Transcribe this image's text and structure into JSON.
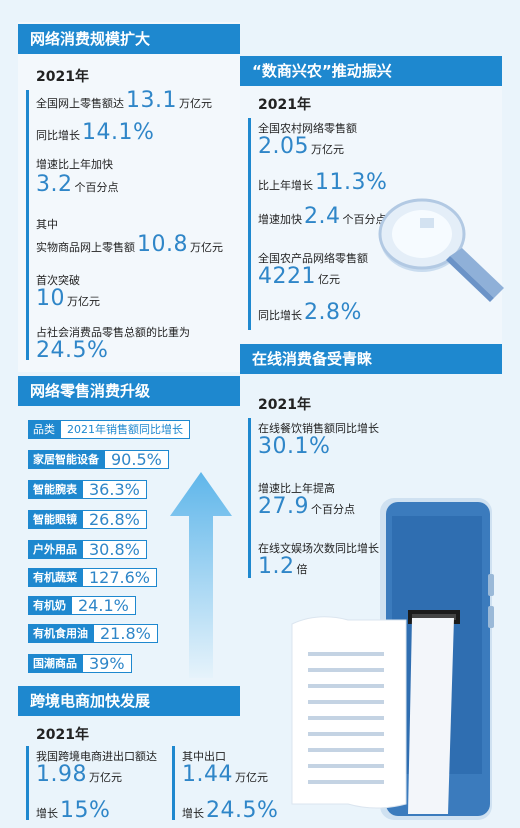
{
  "s1": {
    "title": "网络消费规模扩大",
    "year": "2021年",
    "r1": {
      "label": "全国网上零售额达",
      "value": "13.1",
      "unit": "万亿元"
    },
    "r2": {
      "label": "同比增长",
      "value": "14.1%"
    },
    "r3": {
      "label": "增速比上年加快",
      "value": "3.2",
      "unit": "个百分点"
    },
    "r4": {
      "label": "其中"
    },
    "r5": {
      "label": "实物商品网上零售额",
      "value": "10.8",
      "unit": "万亿元"
    },
    "r6": {
      "label": "首次突破",
      "value": "10",
      "unit": "万亿元"
    },
    "r7": {
      "label": "占社会消费品零售总额的比重为",
      "value": "24.5%"
    }
  },
  "s2": {
    "title": "“数商兴农”推动振兴",
    "year": "2021年",
    "r1": {
      "label": "全国农村网络零售额",
      "value": "2.05",
      "unit": "万亿元"
    },
    "r2": {
      "label": "比上年增长",
      "value": "11.3%"
    },
    "r3": {
      "label": "增速加快",
      "value": "2.4",
      "unit": "个百分点"
    },
    "r4": {
      "label": "全国农产品网络零售额",
      "value": "4221",
      "unit": "亿元"
    },
    "r5": {
      "label": "同比增长",
      "value": "2.8%"
    }
  },
  "s3": {
    "title": "网络零售消费升级",
    "header": {
      "cat": "品类",
      "val": "2021年销售额同比增长"
    },
    "items": [
      {
        "cat": "家居智能设备",
        "val": "90.5%"
      },
      {
        "cat": "智能腕表",
        "val": "36.3%"
      },
      {
        "cat": "智能眼镜",
        "val": "26.8%"
      },
      {
        "cat": "户外用品",
        "val": "30.8%"
      },
      {
        "cat": "有机蔬菜",
        "val": "127.6%"
      },
      {
        "cat": "有机奶",
        "val": "24.1%"
      },
      {
        "cat": "有机食用油",
        "val": "21.8%"
      },
      {
        "cat": "国潮商品",
        "val": "39%"
      }
    ]
  },
  "s4": {
    "title": "在线消费备受青睐",
    "year": "2021年",
    "r1": {
      "label": "在线餐饮销售额同比增长",
      "value": "30.1%"
    },
    "r2": {
      "label": "增速比上年提高",
      "value": "27.9",
      "unit": "个百分点"
    },
    "r3": {
      "label": "在线文娱场次数同比增长",
      "value": "1.2",
      "unit": "倍"
    }
  },
  "s5": {
    "title": "跨境电商加快发展",
    "year": "2021年",
    "r1": {
      "label": "我国跨境电商进出口额达",
      "value": "1.98",
      "unit": "万亿元"
    },
    "r2": {
      "label": "增长",
      "value": "15%"
    },
    "r3": {
      "label": "其中出口",
      "value": "1.44",
      "unit": "万亿元"
    },
    "r4": {
      "label": "增长",
      "value": "24.5%"
    }
  }
}
